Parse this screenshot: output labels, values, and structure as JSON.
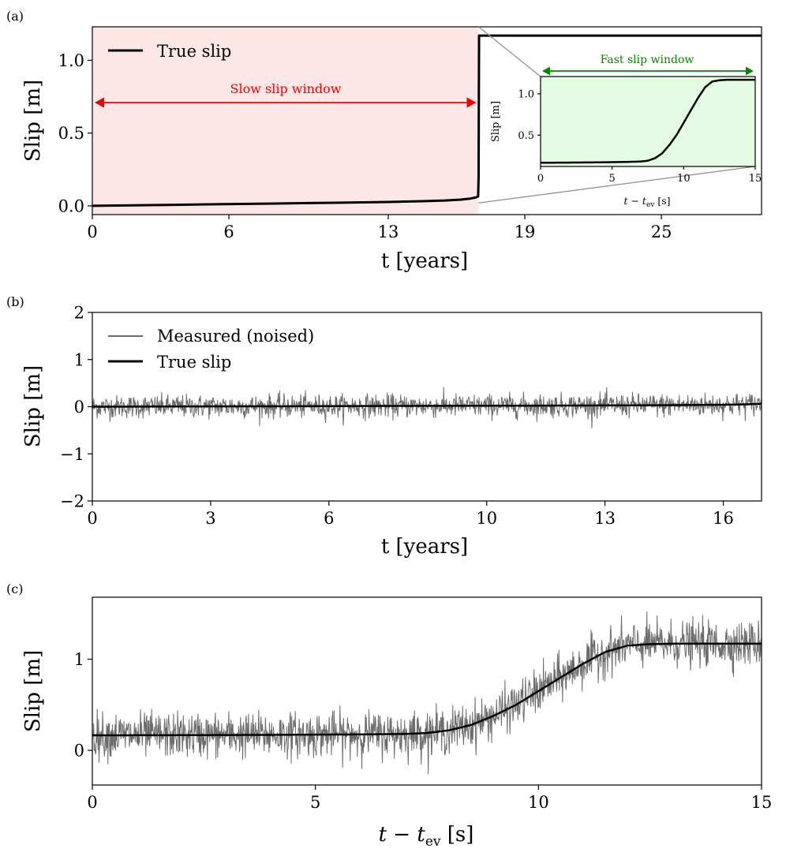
{
  "chart_data": [
    {
      "panel": "(a)",
      "type": "line",
      "xlabel": "t [years]",
      "ylabel": "Slip [m]",
      "xlim": [
        0,
        29.4
      ],
      "ylim": [
        -0.06,
        1.23
      ],
      "xticks": [
        0,
        6,
        13,
        19,
        25
      ],
      "yticks": [
        0.0,
        0.5,
        1.0
      ],
      "ytick_labels": [
        "0.0",
        "0.5",
        "1.0"
      ],
      "legend": {
        "location": "top-left",
        "entries": [
          "True slip"
        ]
      },
      "slow_window_label": "Slow slip window",
      "slow_window_years": [
        0,
        16.97
      ],
      "series": [
        {
          "name": "True slip",
          "color": "#000000",
          "x": [
            0,
            4,
            8,
            11,
            13,
            14.5,
            15.5,
            16.2,
            16.6,
            16.85,
            16.95,
            16.97,
            16.99,
            29.4
          ],
          "y": [
            0.0,
            0.008,
            0.016,
            0.022,
            0.027,
            0.032,
            0.037,
            0.043,
            0.05,
            0.058,
            0.065,
            0.2,
            1.17,
            1.17
          ]
        }
      ],
      "inset": {
        "xlabel": "t − t_ev [s]",
        "xlabel_main": "t",
        "xlabel_sub": "ev",
        "xlabel_unit": "[s]",
        "ylabel": "Slip [m]",
        "xlim": [
          0,
          15
        ],
        "ylim": [
          0.12,
          1.21
        ],
        "xticks": [
          0,
          5,
          10,
          15
        ],
        "yticks": [
          0.5,
          1.0
        ],
        "ytick_labels": [
          "0.5",
          "1.0"
        ],
        "window_label": "Fast slip window",
        "x": [
          0,
          2,
          4,
          6,
          7,
          7.5,
          8,
          8.5,
          9,
          9.5,
          10,
          10.5,
          11,
          11.5,
          12,
          12.5,
          13,
          15
        ],
        "y": [
          0.165,
          0.167,
          0.17,
          0.175,
          0.18,
          0.19,
          0.22,
          0.28,
          0.38,
          0.5,
          0.65,
          0.8,
          0.95,
          1.08,
          1.15,
          1.165,
          1.17,
          1.17
        ]
      }
    },
    {
      "panel": "(b)",
      "type": "line",
      "xlabel": "t [years]",
      "ylabel": "Slip [m]",
      "xlim": [
        0,
        16.97
      ],
      "ylim": [
        -2,
        2
      ],
      "xticks": [
        0,
        3,
        6,
        10,
        13,
        16
      ],
      "yticks": [
        -2,
        -1,
        0,
        1,
        2
      ],
      "ytick_labels": [
        "−2",
        "−1",
        "0",
        "1",
        "2"
      ],
      "legend": {
        "location": "top-left",
        "entries": [
          "Measured (noised)",
          "True slip"
        ]
      },
      "noise_std": 0.12,
      "series": [
        {
          "name": "Measured (noised)",
          "color": "#6b6b6b",
          "kind": "true slip plus gaussian noise"
        },
        {
          "name": "True slip",
          "color": "#000000",
          "x": [
            0,
            4,
            8,
            11,
            13,
            14.5,
            15.5,
            16.2,
            16.6,
            16.85,
            16.97
          ],
          "y": [
            0.0,
            0.008,
            0.016,
            0.022,
            0.027,
            0.032,
            0.037,
            0.043,
            0.05,
            0.058,
            0.065
          ]
        }
      ]
    },
    {
      "panel": "(c)",
      "type": "line",
      "xlabel": "t − t_ev [s]",
      "xlabel_main": "t",
      "xlabel_sub": "ev",
      "xlabel_unit": "[s]",
      "ylabel": "Slip [m]",
      "xlim": [
        0,
        15
      ],
      "ylim": [
        -0.38,
        1.68
      ],
      "xticks": [
        0,
        5,
        10,
        15
      ],
      "yticks": [
        0,
        1
      ],
      "ytick_labels": [
        "0",
        "1"
      ],
      "noise_std": 0.12,
      "series": [
        {
          "name": "Measured (noised)",
          "color": "#6b6b6b",
          "kind": "true slip plus gaussian noise"
        },
        {
          "name": "True slip",
          "color": "#000000",
          "x": [
            0,
            2,
            4,
            6,
            7,
            7.5,
            8,
            8.5,
            9,
            9.5,
            10,
            10.5,
            11,
            11.5,
            12,
            12.5,
            13,
            15
          ],
          "y": [
            0.165,
            0.167,
            0.17,
            0.175,
            0.18,
            0.19,
            0.22,
            0.28,
            0.38,
            0.5,
            0.65,
            0.8,
            0.95,
            1.08,
            1.15,
            1.165,
            1.17,
            1.17
          ]
        }
      ]
    }
  ],
  "colors": {
    "true_slip": "#000000",
    "measured": "#6b6b6b",
    "slow_window_fill": "#fde6e6",
    "slow_window_arrow": "#ee0000",
    "fast_window_fill": "#e2fbe2",
    "fast_window_arrow": "#008800",
    "connector": "#8c8c8c"
  }
}
